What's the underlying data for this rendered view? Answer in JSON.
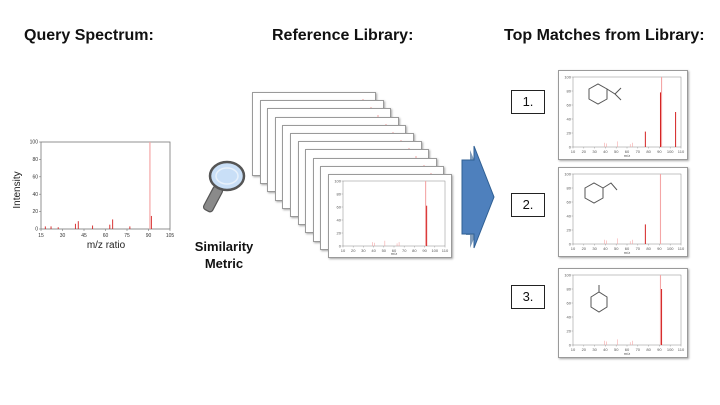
{
  "headings": {
    "query": "Query Spectrum:",
    "reference": "Reference Library:",
    "top_matches": "Top Matches from Library:"
  },
  "similarity_label": [
    "Similarity",
    "Metric"
  ],
  "ranks": [
    "1.",
    "2.",
    "3."
  ],
  "colors": {
    "peak": "#d42020",
    "faint_peak": "#f4a6a6",
    "arrow": "#4e80bd",
    "lens": "#c9dff7"
  },
  "icons": {
    "magnifier": "magnifier-icon",
    "arrow": "right-arrow-icon"
  },
  "chart_data": [
    {
      "type": "bar",
      "title": "",
      "xlabel": "m/z ratio",
      "ylabel": "Intensity",
      "xticks": [
        15,
        30,
        45,
        60,
        75,
        90,
        105
      ],
      "yticks": [
        0,
        20,
        40,
        60,
        80,
        100
      ],
      "xlim": [
        15,
        105
      ],
      "ylim": [
        0,
        100
      ],
      "x": [
        18,
        22,
        27,
        39,
        41,
        51,
        63,
        65,
        77,
        91,
        92
      ],
      "values": [
        3,
        3,
        2,
        6,
        9,
        4,
        5,
        11,
        3,
        100,
        15
      ]
    }
  ],
  "matches": [
    {
      "rank": "1.",
      "peaks": [
        [
          92,
          100
        ],
        [
          77,
          22
        ],
        [
          91,
          78
        ],
        [
          105,
          50
        ]
      ]
    },
    {
      "rank": "2.",
      "peaks": [
        [
          91,
          100
        ],
        [
          77,
          28
        ]
      ]
    },
    {
      "rank": "3.",
      "peaks": [
        [
          91,
          100
        ],
        [
          92,
          80
        ]
      ]
    }
  ]
}
